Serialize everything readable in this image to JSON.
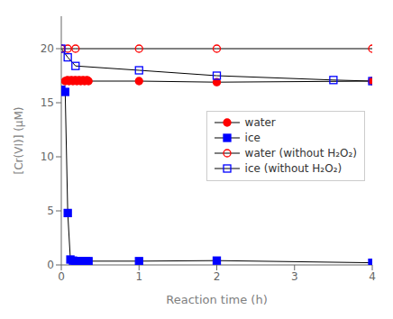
{
  "chart_data": {
    "type": "line",
    "xlabel": "Reaction time (h)",
    "ylabel": "[Cr(VI)] (μM)",
    "xlim": [
      0,
      4
    ],
    "ylim": [
      0,
      23
    ],
    "xticks": [
      0,
      1,
      2,
      3,
      4
    ],
    "yticks": [
      0,
      5,
      10,
      15,
      20
    ],
    "legend": "right",
    "series": [
      {
        "name": "water",
        "color": "#ff0000",
        "marker": "circle",
        "x": [
          0.05,
          0.08,
          0.1,
          0.13,
          0.15,
          0.18,
          0.2,
          0.23,
          0.25,
          0.28,
          0.3,
          0.33,
          0.35,
          1.0,
          2.0,
          4.0
        ],
        "values": [
          17.0,
          17.1,
          17.0,
          17.1,
          17.0,
          17.1,
          17.0,
          17.1,
          17.0,
          17.1,
          17.0,
          17.1,
          17.0,
          17.0,
          16.9,
          17.0
        ]
      },
      {
        "name": "ice",
        "color": "#0000ff",
        "marker": "square",
        "x": [
          0.0,
          0.05,
          0.083,
          0.117,
          0.15,
          0.183,
          0.217,
          0.25,
          0.283,
          0.317,
          0.35,
          1.0,
          2.0,
          4.0
        ],
        "values": [
          16.2,
          16.0,
          4.8,
          0.5,
          0.4,
          0.35,
          0.35,
          0.35,
          0.35,
          0.35,
          0.35,
          0.35,
          0.4,
          0.2
        ]
      },
      {
        "name": "water (without H₂O₂)",
        "color": "#ff0000",
        "marker": "circle-open",
        "x": [
          0.0,
          0.083,
          0.183,
          1.0,
          2.0,
          4.0
        ],
        "values": [
          20.0,
          20.0,
          20.0,
          20.0,
          20.0,
          20.0
        ]
      },
      {
        "name": "ice (without H₂O₂)",
        "color": "#0000ff",
        "marker": "square-open",
        "x": [
          0.0,
          0.083,
          0.183,
          1.0,
          2.0,
          3.5,
          4.0
        ],
        "values": [
          20.0,
          19.2,
          18.4,
          18.0,
          17.5,
          17.1,
          17.0
        ]
      }
    ]
  }
}
